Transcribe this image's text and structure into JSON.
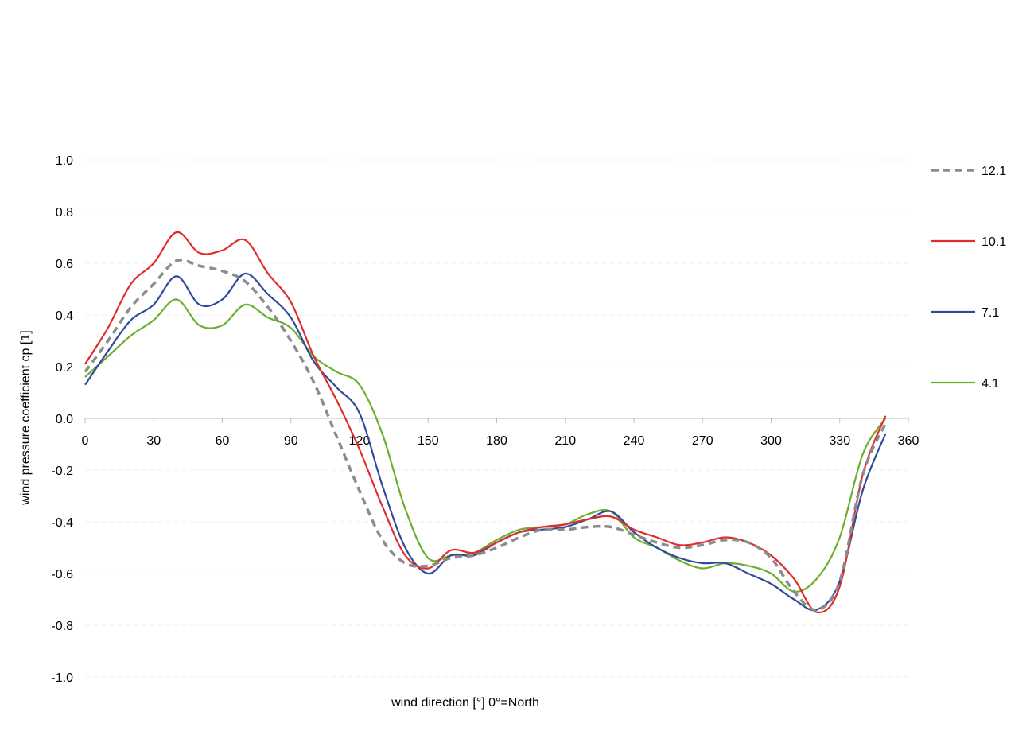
{
  "chart_data": {
    "type": "line",
    "title": "",
    "xlabel": "wind direction [°] 0°=North",
    "ylabel": "wind pressure coefficient cp [1]",
    "xlim": [
      0,
      360
    ],
    "ylim": [
      -1.0,
      1.0
    ],
    "x_ticks": [
      "0",
      "30",
      "60",
      "90",
      "120",
      "150",
      "180",
      "210",
      "240",
      "270",
      "300",
      "330",
      "360"
    ],
    "y_ticks": [
      "1.0",
      "0.8",
      "0.6",
      "0.4",
      "0.2",
      "0.0",
      "-0.2",
      "-0.4",
      "-0.6",
      "-0.8",
      "-1.0"
    ],
    "legend_position": "right",
    "grid": true,
    "series": [
      {
        "name": "12.1",
        "color": "#8c8c8c",
        "dash": true,
        "x": [
          0,
          10,
          20,
          30,
          40,
          50,
          60,
          70,
          80,
          90,
          100,
          110,
          120,
          130,
          140,
          150,
          160,
          170,
          180,
          190,
          200,
          210,
          220,
          230,
          240,
          250,
          260,
          270,
          280,
          290,
          300,
          310,
          320,
          330,
          340,
          350
        ],
        "y": [
          0.18,
          0.3,
          0.43,
          0.52,
          0.61,
          0.59,
          0.57,
          0.53,
          0.43,
          0.3,
          0.14,
          -0.07,
          -0.28,
          -0.47,
          -0.56,
          -0.57,
          -0.54,
          -0.53,
          -0.5,
          -0.46,
          -0.43,
          -0.43,
          -0.42,
          -0.42,
          -0.45,
          -0.48,
          -0.5,
          -0.49,
          -0.47,
          -0.48,
          -0.54,
          -0.67,
          -0.74,
          -0.63,
          -0.22,
          -0.02
        ]
      },
      {
        "name": "10.1",
        "color": "#e02c2c",
        "dash": false,
        "x": [
          0,
          10,
          20,
          30,
          40,
          50,
          60,
          70,
          80,
          90,
          100,
          110,
          120,
          130,
          140,
          150,
          160,
          170,
          180,
          190,
          200,
          210,
          220,
          230,
          240,
          250,
          260,
          270,
          280,
          290,
          300,
          310,
          320,
          330,
          340,
          350
        ],
        "y": [
          0.21,
          0.35,
          0.52,
          0.6,
          0.72,
          0.64,
          0.65,
          0.69,
          0.56,
          0.45,
          0.24,
          0.07,
          -0.12,
          -0.34,
          -0.53,
          -0.58,
          -0.51,
          -0.52,
          -0.48,
          -0.44,
          -0.42,
          -0.41,
          -0.39,
          -0.38,
          -0.43,
          -0.46,
          -0.49,
          -0.48,
          -0.46,
          -0.48,
          -0.53,
          -0.62,
          -0.75,
          -0.65,
          -0.22,
          0.01
        ]
      },
      {
        "name": "7.1",
        "color": "#2e4a9a",
        "dash": false,
        "x": [
          0,
          10,
          20,
          30,
          40,
          50,
          60,
          70,
          80,
          90,
          100,
          110,
          120,
          130,
          140,
          150,
          160,
          170,
          180,
          190,
          200,
          210,
          220,
          230,
          240,
          250,
          260,
          270,
          280,
          290,
          300,
          310,
          320,
          330,
          340,
          350
        ],
        "y": [
          0.13,
          0.26,
          0.38,
          0.44,
          0.55,
          0.44,
          0.46,
          0.56,
          0.48,
          0.39,
          0.22,
          0.12,
          0.02,
          -0.26,
          -0.5,
          -0.6,
          -0.53,
          -0.53,
          -0.48,
          -0.44,
          -0.43,
          -0.42,
          -0.39,
          -0.36,
          -0.44,
          -0.5,
          -0.54,
          -0.56,
          -0.56,
          -0.6,
          -0.64,
          -0.7,
          -0.74,
          -0.63,
          -0.28,
          -0.06
        ]
      },
      {
        "name": "4.1",
        "color": "#6aaf2e",
        "dash": false,
        "x": [
          0,
          10,
          20,
          30,
          40,
          50,
          60,
          70,
          80,
          90,
          100,
          110,
          120,
          130,
          140,
          150,
          160,
          170,
          180,
          190,
          200,
          210,
          220,
          230,
          240,
          250,
          260,
          270,
          280,
          290,
          300,
          310,
          320,
          330,
          340,
          350
        ],
        "y": [
          0.16,
          0.24,
          0.32,
          0.38,
          0.46,
          0.36,
          0.36,
          0.44,
          0.39,
          0.35,
          0.24,
          0.18,
          0.13,
          -0.06,
          -0.35,
          -0.54,
          -0.53,
          -0.52,
          -0.47,
          -0.43,
          -0.42,
          -0.41,
          -0.37,
          -0.36,
          -0.46,
          -0.5,
          -0.55,
          -0.58,
          -0.56,
          -0.57,
          -0.6,
          -0.67,
          -0.62,
          -0.46,
          -0.14,
          0.0
        ]
      }
    ]
  }
}
